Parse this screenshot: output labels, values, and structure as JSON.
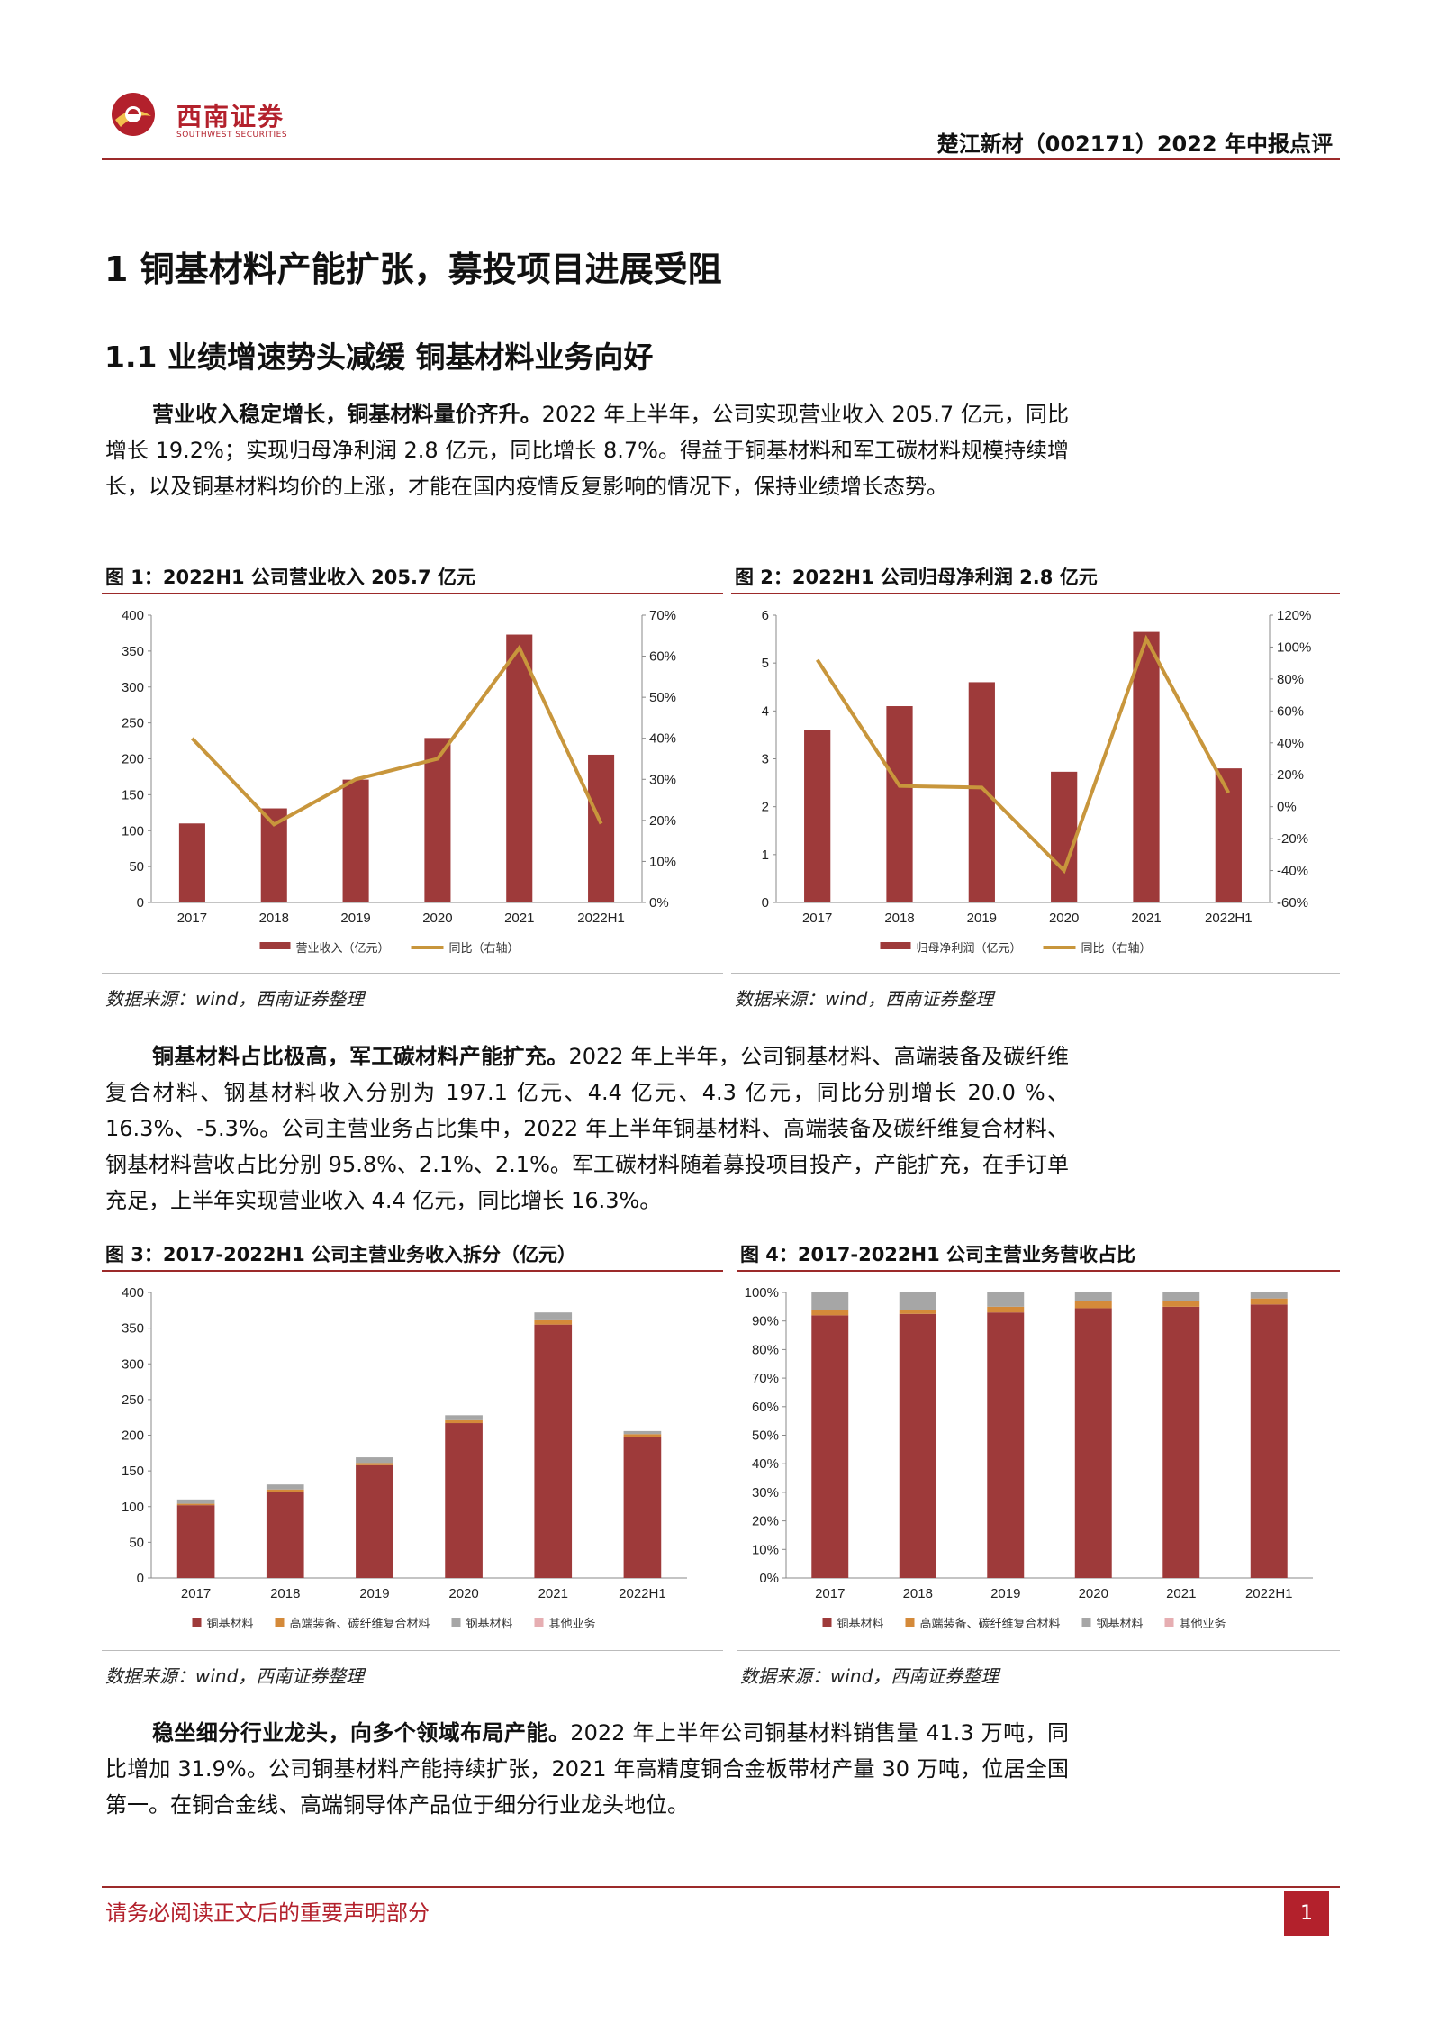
{
  "header": {
    "brand_cn": "西南证券",
    "brand_en": "SOUTHWEST SECURITIES",
    "doc_title": "楚江新材（002171）2022 年中报点评"
  },
  "section1": {
    "title": "1 铜基材料产能扩张，募投项目进展受阻"
  },
  "section1_1": {
    "title": "1.1 业绩增速势头减缓 铜基材料业务向好"
  },
  "para1": {
    "lead": "营业收入稳定增长，铜基材料量价齐升。",
    "body": "2022 年上半年，公司实现营业收入 205.7 亿元，同比增长 19.2%；实现归母净利润 2.8 亿元，同比增长 8.7%。得益于铜基材料和军工碳材料规模持续增长，以及铜基材料均价的上涨，才能在国内疫情反复影响的情况下，保持业绩增长态势。"
  },
  "para2": {
    "lead": "铜基材料占比极高，军工碳材料产能扩充。",
    "body": "2022 年上半年，公司铜基材料、高端装备及碳纤维复合材料、钢基材料收入分别为 197.1 亿元、4.4 亿元、4.3 亿元，同比分别增长 20.0 %、16.3%、-5.3%。公司主营业务占比集中，2022 年上半年铜基材料、高端装备及碳纤维复合材料、钢基材料营收占比分别 95.8%、2.1%、2.1%。军工碳材料随着募投项目投产，产能扩充，在手订单充足，上半年实现营业收入 4.4 亿元，同比增长 16.3%。"
  },
  "para3": {
    "lead": "稳坐细分行业龙头，向多个领域布局产能。",
    "body": "2022 年上半年公司铜基材料销售量 41.3 万吨，同比增加 31.9%。公司铜基材料产能持续扩张，2021 年高精度铜合金板带材产量 30 万吨，位居全国第一。在铜合金线、高端铜导体产品位于细分行业龙头地位。"
  },
  "figures": {
    "fig1_title": "图 1：2022H1 公司营业收入 205.7 亿元",
    "fig2_title": "图 2：2022H1 公司归母净利润 2.8 亿元",
    "fig3_title": "图 3：2017-2022H1 公司主营业务收入拆分（亿元）",
    "fig4_title": "图 4：2017-2022H1 公司主营业务营收占比",
    "source": "数据来源：wind，西南证券整理"
  },
  "chart_data": [
    {
      "type": "bar",
      "title": "图 1：2022H1 公司营业收入 205.7 亿元",
      "categories": [
        "2017",
        "2018",
        "2019",
        "2020",
        "2021",
        "2022H1"
      ],
      "series": [
        {
          "name": "营业收入（亿元）",
          "type": "bar",
          "values": [
            110,
            131,
            171,
            229,
            373,
            205.7
          ],
          "color": "#9e3a3a"
        },
        {
          "name": "同比（右轴）",
          "type": "line",
          "axis": "right",
          "values": [
            40,
            19,
            30,
            35,
            62,
            19.2
          ],
          "color": "#c8963c"
        }
      ],
      "ylim": [
        0,
        400
      ],
      "yticks": [
        0,
        50,
        100,
        150,
        200,
        250,
        300,
        350,
        400
      ],
      "y2lim": [
        0,
        70
      ],
      "y2ticks": [
        "0%",
        "10%",
        "20%",
        "30%",
        "40%",
        "50%",
        "60%",
        "70%"
      ],
      "legend_position": "bottom"
    },
    {
      "type": "bar",
      "title": "图 2：2022H1 公司归母净利润 2.8 亿元",
      "categories": [
        "2017",
        "2018",
        "2019",
        "2020",
        "2021",
        "2022H1"
      ],
      "series": [
        {
          "name": "归母净利润（亿元）",
          "type": "bar",
          "values": [
            3.6,
            4.1,
            4.6,
            2.73,
            5.65,
            2.8
          ],
          "color": "#9e3a3a"
        },
        {
          "name": "同比（右轴）",
          "type": "line",
          "axis": "right",
          "values": [
            92,
            13,
            12,
            -40,
            105,
            8.7
          ],
          "color": "#c8963c"
        }
      ],
      "ylim": [
        0,
        6
      ],
      "yticks": [
        0,
        1,
        2,
        3,
        4,
        5,
        6
      ],
      "y2lim": [
        -60,
        120
      ],
      "y2ticks": [
        "-60%",
        "-40%",
        "-20%",
        "0%",
        "20%",
        "40%",
        "60%",
        "80%",
        "100%",
        "120%"
      ],
      "legend_position": "bottom"
    },
    {
      "type": "bar",
      "title": "图 3：2017-2022H1 公司主营业务收入拆分（亿元）",
      "stacked": true,
      "categories": [
        "2017",
        "2018",
        "2019",
        "2020",
        "2021",
        "2022H1"
      ],
      "series": [
        {
          "name": "铜基材料",
          "values": [
            102,
            121,
            158,
            217,
            355,
            197.1
          ],
          "color": "#9e3a3a"
        },
        {
          "name": "高端装备、碳纤维复合材料",
          "values": [
            2,
            3,
            3,
            4,
            6,
            4.4
          ],
          "color": "#d48a3a"
        },
        {
          "name": "钢基材料",
          "values": [
            6,
            7,
            8,
            7,
            11,
            4.3
          ],
          "color": "#a6a6a6"
        },
        {
          "name": "其他业务",
          "values": [
            0,
            0,
            0,
            0,
            0,
            0
          ],
          "color": "#e6aeb2"
        }
      ],
      "ylim": [
        0,
        400
      ],
      "yticks": [
        0,
        50,
        100,
        150,
        200,
        250,
        300,
        350,
        400
      ],
      "legend_position": "bottom"
    },
    {
      "type": "bar",
      "title": "图 4：2017-2022H1 公司主营业务营收占比",
      "stacked": true,
      "categories": [
        "2017",
        "2018",
        "2019",
        "2020",
        "2021",
        "2022H1"
      ],
      "series": [
        {
          "name": "铜基材料",
          "values": [
            92,
            92.5,
            93,
            94.5,
            95,
            95.8
          ],
          "color": "#9e3a3a"
        },
        {
          "name": "高端装备、碳纤维复合材料",
          "values": [
            2,
            1.5,
            2,
            2.5,
            2,
            2.1
          ],
          "color": "#d48a3a"
        },
        {
          "name": "钢基材料",
          "values": [
            6,
            6,
            5,
            3,
            3,
            2.1
          ],
          "color": "#a6a6a6"
        },
        {
          "name": "其他业务",
          "values": [
            0,
            0,
            0,
            0,
            0,
            0
          ],
          "color": "#e6aeb2"
        }
      ],
      "ylim": [
        0,
        100
      ],
      "yticks": [
        "0%",
        "10%",
        "20%",
        "30%",
        "40%",
        "50%",
        "60%",
        "70%",
        "80%",
        "90%",
        "100%"
      ],
      "legend_position": "bottom"
    }
  ],
  "footer": {
    "disclaimer": "请务必阅读正文后的重要声明部分",
    "page_number": "1"
  }
}
